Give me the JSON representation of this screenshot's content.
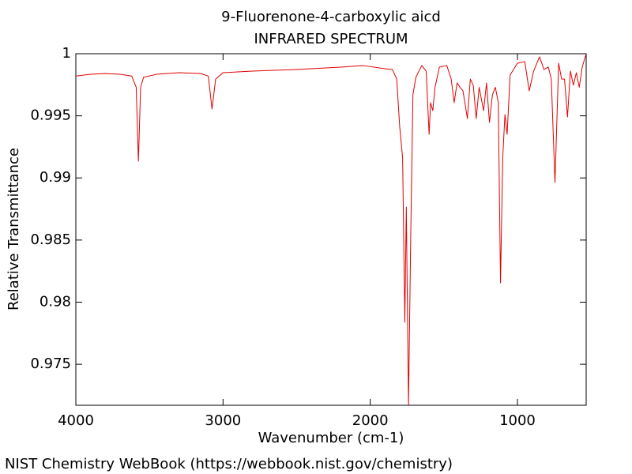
{
  "chart_data": {
    "type": "line",
    "title": "9-Fluorenone-4-carboxylic aicd",
    "subtitle": "INFRARED SPECTRUM",
    "x_label": "Wavenumber (cm-1)",
    "y_label": "Relative Transmittance",
    "xlim": [
      4000,
      533
    ],
    "ylim": [
      0.9717,
      1
    ],
    "xticks": [
      4000,
      3000,
      2000,
      1000
    ],
    "yticks": [
      0.975,
      0.98,
      0.985,
      0.99,
      0.995,
      1
    ],
    "grid": false,
    "color": "#e00000",
    "x": [
      4000,
      3900,
      3800,
      3700,
      3620,
      3590,
      3575,
      3560,
      3540,
      3450,
      3300,
      3150,
      3100,
      3075,
      3050,
      3000,
      2800,
      2500,
      2200,
      2050,
      1900,
      1850,
      1820,
      1800,
      1780,
      1765,
      1755,
      1740,
      1725,
      1710,
      1690,
      1650,
      1620,
      1600,
      1590,
      1575,
      1560,
      1530,
      1480,
      1450,
      1430,
      1410,
      1390,
      1370,
      1340,
      1320,
      1300,
      1280,
      1260,
      1230,
      1210,
      1190,
      1170,
      1150,
      1130,
      1115,
      1100,
      1085,
      1070,
      1050,
      1000,
      950,
      920,
      890,
      850,
      820,
      790,
      770,
      745,
      720,
      700,
      680,
      660,
      640,
      620,
      600,
      580,
      560,
      533
    ],
    "values": [
      0.9982,
      0.99835,
      0.9984,
      0.99835,
      0.9982,
      0.9973,
      0.99135,
      0.9973,
      0.9981,
      0.99835,
      0.99847,
      0.9984,
      0.9982,
      0.99555,
      0.99796,
      0.99847,
      0.9986,
      0.99873,
      0.99892,
      0.99905,
      0.99879,
      0.99873,
      0.99796,
      0.99415,
      0.9916,
      0.97838,
      0.98766,
      0.9717,
      0.98525,
      0.99669,
      0.9981,
      0.99905,
      0.9986,
      0.99351,
      0.99606,
      0.99542,
      0.9973,
      0.99892,
      0.99905,
      0.99796,
      0.99606,
      0.99765,
      0.9973,
      0.99701,
      0.99478,
      0.99796,
      0.99746,
      0.99478,
      0.9973,
      0.99542,
      0.99765,
      0.99447,
      0.99669,
      0.9973,
      0.99606,
      0.98156,
      0.9916,
      0.9951,
      0.99351,
      0.99828,
      0.99924,
      0.99936,
      0.99701,
      0.9986,
      0.99975,
      0.99873,
      0.99892,
      0.99796,
      0.98963,
      0.99924,
      0.99796,
      0.99796,
      0.99491,
      0.9986,
      0.99746,
      0.99847,
      0.9973,
      0.99892,
      1.0
    ]
  },
  "footer": "NIST Chemistry WebBook (https://webbook.nist.gov/chemistry)"
}
